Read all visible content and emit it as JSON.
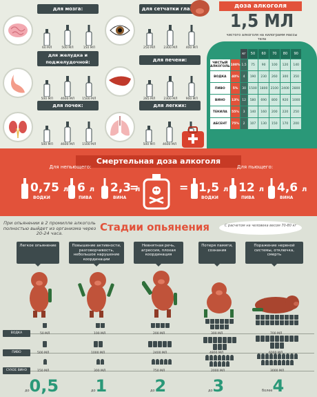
{
  "organs": [
    {
      "label": "для мозга:",
      "icon": "brain-icon",
      "doses": [
        "60 МЛ",
        "500 МЛ",
        "150 МЛ"
      ]
    },
    {
      "label": "для сетчатки глаза:",
      "icon": "eye-icon",
      "doses": [
        "250 МЛ",
        "2300 МЛ",
        "400 МЛ"
      ]
    },
    {
      "label": "для желудка и поджелудочной:",
      "icon": "stomach-icon",
      "doses": [
        "500 МЛ",
        "4600 МЛ",
        "1500 МЛ"
      ]
    },
    {
      "label": "для печени:",
      "icon": "liver-icon",
      "doses": [
        "285 МЛ",
        "2300 МЛ",
        "900 МЛ"
      ]
    },
    {
      "label": "для почек:",
      "icon": "kidneys-icon",
      "doses": [
        "500 МЛ",
        "4600 МЛ",
        "1500 МЛ"
      ]
    },
    {
      "label": "для легких:",
      "icon": "lungs-icon",
      "doses": [
        "500 МЛ",
        "4600 МЛ",
        "1500 МЛ"
      ]
    }
  ],
  "dose": {
    "title": "доза алкоголя",
    "amount": "1,5 МЛ",
    "subtitle": "чистого алкоголя на килограмм массы тела"
  },
  "dose_table": {
    "weights": [
      "кг",
      "50",
      "60",
      "70",
      "80",
      "90"
    ],
    "rows": [
      {
        "name": "ЧИСТЫЙ АЛКОГОЛЬ",
        "pct": "100%",
        "pct_color": "#e2523a",
        "values": [
          "1,5",
          "75",
          "90",
          "100",
          "120",
          "140"
        ]
      },
      {
        "name": "ВОДКА",
        "pct": "40%",
        "pct_color": "#e2523a",
        "values": [
          "4",
          "190",
          "230",
          "260",
          "300",
          "350"
        ]
      },
      {
        "name": "ПИВО",
        "pct": "5%",
        "pct_color": "#e2523a",
        "values": [
          "30",
          "1500",
          "1800",
          "2100",
          "2400",
          "2800"
        ]
      },
      {
        "name": "ВИНО",
        "pct": "13%",
        "pct_color": "#e2523a",
        "values": [
          "12",
          "580",
          "690",
          "800",
          "920",
          "1000"
        ]
      },
      {
        "name": "ТЕКИЛА",
        "pct": "55%",
        "pct_color": "#e2523a",
        "values": [
          "3",
          "140",
          "160",
          "200",
          "220",
          "250"
        ]
      },
      {
        "name": "АБСЕНТ",
        "pct": "75%",
        "pct_color": "#e2523a",
        "values": [
          "2",
          "107",
          "130",
          "150",
          "170",
          "200"
        ]
      }
    ]
  },
  "lethal": {
    "title": "Смертельная доза алкоголя",
    "nondrinker_label": "Для непьющего:",
    "drinker_label": "Для пьющего:",
    "nondrinker": [
      {
        "amount": "0,75",
        "unit": "л",
        "kind": "ВОДКИ"
      },
      {
        "amount": "6",
        "unit": "л",
        "kind": "ПИВА"
      },
      {
        "amount": "2,3",
        "unit": "л",
        "kind": "ВИНА"
      }
    ],
    "drinker": [
      {
        "amount": "1,5",
        "unit": "л",
        "kind": "ВОДКИ"
      },
      {
        "amount": "12",
        "unit": "л",
        "kind": "ПИВА"
      },
      {
        "amount": "4,6",
        "unit": "л",
        "kind": "ВИНА"
      }
    ]
  },
  "stages": {
    "note": "При опьянении в 2 промилле алкоголь полностью выйдет из организма через 20-24 часа.",
    "title": "Стадии опьянения",
    "bubble": "С расчетом на человека весом 70-80 кг",
    "items": [
      {
        "desc": "Легкое опьянение",
        "num": "0,5",
        "prefix": "до"
      },
      {
        "desc": "Повышение активности, разговорчивость, небольшое нарушение координации",
        "num": "1",
        "prefix": "до"
      },
      {
        "desc": "Невнятная речь, агрессия, плохая координация",
        "num": "2",
        "prefix": "до"
      },
      {
        "desc": "Потеря памяти, сознания",
        "num": "3",
        "prefix": "до"
      },
      {
        "desc": "Поражение нервной системы, отключка, смерть",
        "num": "4",
        "prefix": "более"
      }
    ],
    "rows": [
      {
        "label": "ВОДКА",
        "values": [
          "50 МЛ",
          "100 МЛ",
          "200 МЛ",
          "300 МЛ",
          "700 МЛ"
        ]
      },
      {
        "label": "ПИВО",
        "values": [
          "500 МЛ",
          "1000 МЛ",
          "2400 МЛ",
          "4800 МЛ",
          "6000 МЛ"
        ]
      },
      {
        "label": "СУХОЕ ВИНО",
        "values": [
          "150 МЛ",
          "300 МЛ",
          "750 МЛ",
          "2000 МЛ",
          "3000 МЛ"
        ]
      }
    ]
  }
}
